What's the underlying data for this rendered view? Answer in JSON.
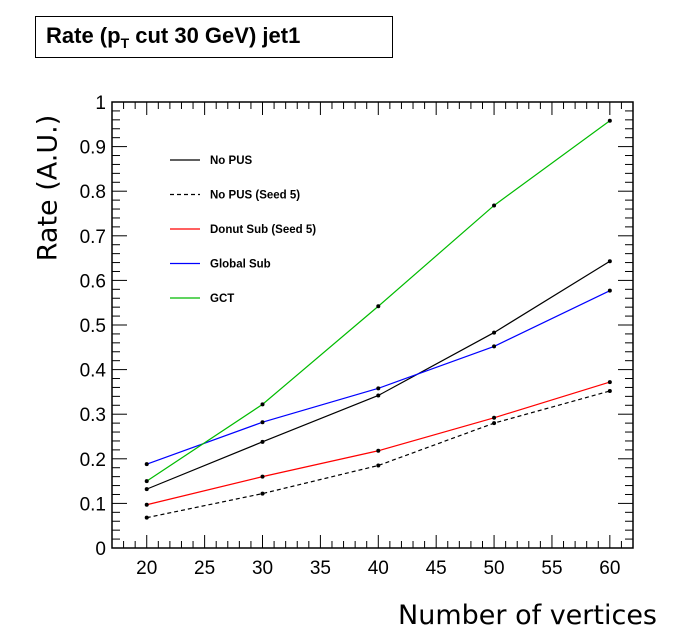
{
  "title": {
    "prefix": "Rate (p",
    "subscript": "T",
    "suffix": " cut 30 GeV) jet1"
  },
  "chart_data": {
    "type": "line",
    "xlabel": "Number of vertices",
    "ylabel": "Rate (A.U.)",
    "xlim": [
      17,
      62
    ],
    "ylim": [
      0,
      1
    ],
    "x_ticks": [
      "20",
      "25",
      "30",
      "35",
      "40",
      "45",
      "50",
      "55",
      "60"
    ],
    "y_ticks": [
      "0",
      "0.1",
      "0.2",
      "0.3",
      "0.4",
      "0.5",
      "0.6",
      "0.7",
      "0.8",
      "0.9",
      "1"
    ],
    "x": [
      20,
      30,
      40,
      50,
      60
    ],
    "legend_position": "top-left",
    "series": [
      {
        "name": "No PUS",
        "color": "#000000",
        "dashed": false,
        "values": [
          0.132,
          0.238,
          0.342,
          0.483,
          0.643
        ]
      },
      {
        "name": "No PUS (Seed 5)",
        "color": "#000000",
        "dashed": true,
        "values": [
          0.068,
          0.122,
          0.185,
          0.28,
          0.352
        ]
      },
      {
        "name": "Donut Sub (Seed 5)",
        "color": "#ff0000",
        "dashed": false,
        "values": [
          0.097,
          0.16,
          0.218,
          0.292,
          0.372
        ]
      },
      {
        "name": "Global Sub",
        "color": "#0000ff",
        "dashed": false,
        "values": [
          0.188,
          0.282,
          0.358,
          0.452,
          0.577
        ]
      },
      {
        "name": "GCT",
        "color": "#00bb00",
        "dashed": false,
        "values": [
          0.15,
          0.322,
          0.542,
          0.768,
          0.958
        ]
      }
    ]
  }
}
